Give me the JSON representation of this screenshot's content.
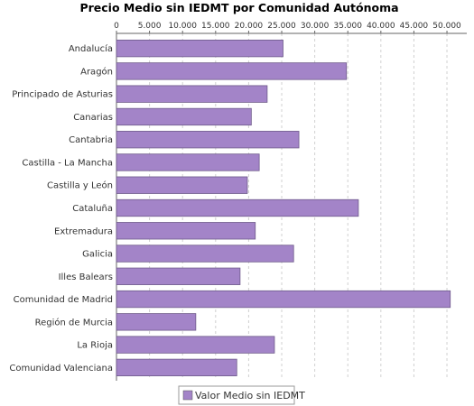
{
  "chart_data": {
    "type": "bar",
    "orientation": "horizontal",
    "title": "Precio Medio sin IEDMT por Comunidad Autónoma",
    "xlabel": "",
    "ylabel": "",
    "xlim": [
      0,
      53000
    ],
    "x_ticks": [
      0,
      5000,
      10000,
      15000,
      20000,
      25000,
      30000,
      35000,
      40000,
      45000,
      50000
    ],
    "x_tick_labels": [
      "0",
      "5.000",
      "10.000",
      "15.000",
      "20.000",
      "25.000",
      "30.000",
      "35.000",
      "40.000",
      "45.000",
      "50.000"
    ],
    "grid": true,
    "legend_position": "bottom-center",
    "categories": [
      "Andalucía",
      "Aragón",
      "Principado de Asturias",
      "Canarias",
      "Cantabria",
      "Castilla - La Mancha",
      "Castilla y León",
      "Cataluña",
      "Extremadura",
      "Galicia",
      "Illes Balears",
      "Comunidad de Madrid",
      "Región de Murcia",
      "La Rioja",
      "Comunidad Valenciana"
    ],
    "series": [
      {
        "name": "Valor Medio sin IEDMT",
        "color": "#a384c8",
        "values": [
          25200,
          34800,
          22800,
          20400,
          27600,
          21600,
          19800,
          36600,
          21000,
          26800,
          18700,
          50500,
          12000,
          23900,
          18200
        ]
      }
    ]
  }
}
